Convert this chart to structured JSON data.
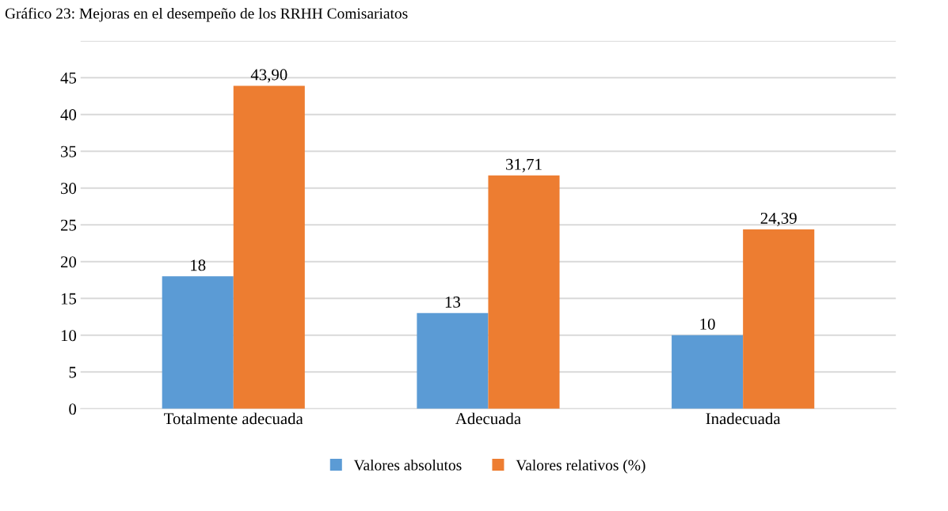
{
  "chart_data": {
    "type": "bar",
    "title": "Gráfico 23: Mejoras en el desempeño de los RRHH Comisariatos",
    "categories": [
      "Totalmente adecuada",
      "Adecuada",
      "Inadecuada"
    ],
    "series": [
      {
        "name": "Valores absolutos",
        "color": "#5b9bd5",
        "values": [
          18,
          13,
          10
        ],
        "value_labels": [
          "18",
          "13",
          "10"
        ]
      },
      {
        "name": "Valores relativos (%)",
        "color": "#ed7d31",
        "values": [
          43.9,
          31.71,
          24.39
        ],
        "value_labels": [
          "43,90",
          "31,71",
          "24,39"
        ]
      }
    ],
    "ylim": [
      0,
      50
    ],
    "yticks": [
      0,
      5,
      10,
      15,
      20,
      25,
      30,
      35,
      40,
      45,
      {
        "value": 50,
        "label": null
      }
    ],
    "grid": "y",
    "legend": "bottom"
  }
}
